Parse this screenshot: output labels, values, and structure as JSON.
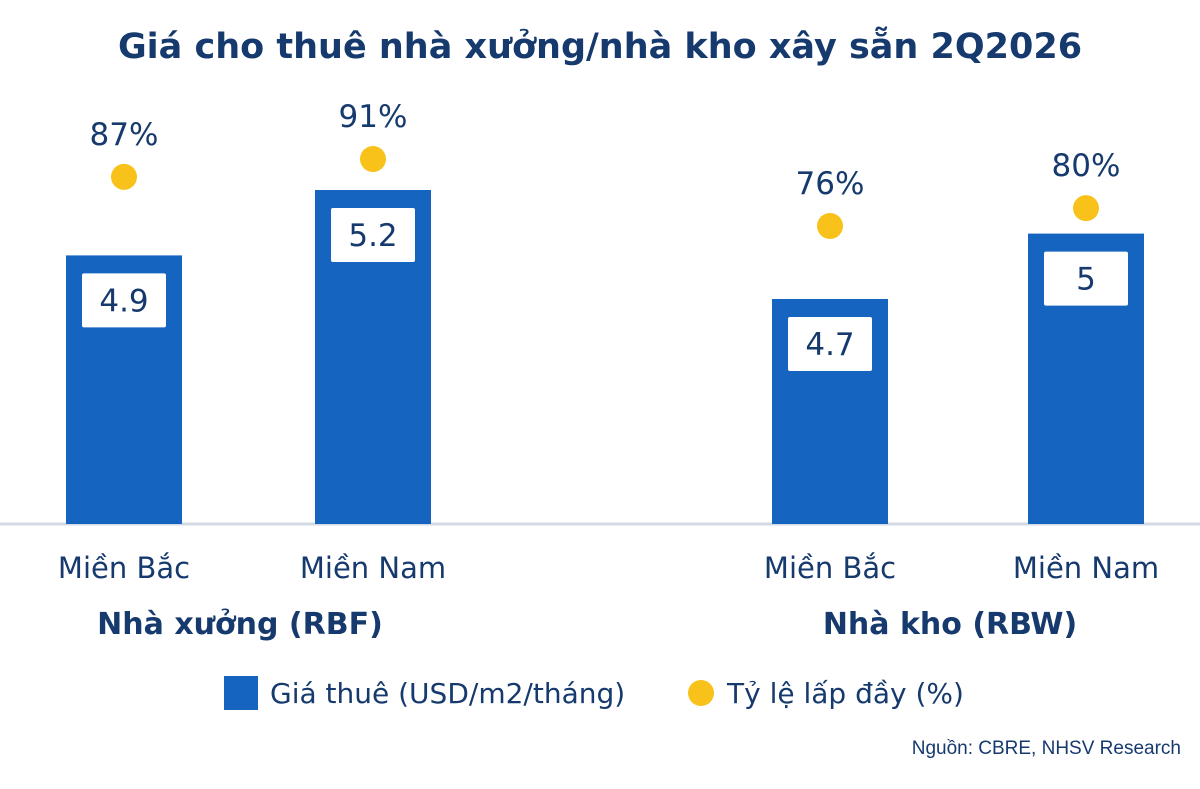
{
  "chart_data": {
    "type": "bar",
    "title": "Giá cho thuê nhà xưởng/nhà kho xây sẵn 2Q2026",
    "groups": [
      {
        "label": "Nhà xưởng (RBF)",
        "categories": [
          "Miền Bắc",
          "Miền Nam"
        ],
        "values": [
          4.9,
          5.2
        ],
        "value_labels": [
          "4.9",
          "5.2"
        ],
        "occupancy": [
          87,
          91
        ],
        "occupancy_labels": [
          "87%",
          "91%"
        ]
      },
      {
        "label": "Nhà kho (RBW)",
        "categories": [
          "Miền Bắc",
          "Miền Nam"
        ],
        "values": [
          4.7,
          5.0
        ],
        "value_labels": [
          "4.7",
          "5"
        ],
        "occupancy": [
          76,
          80
        ],
        "occupancy_labels": [
          "76%",
          "80%"
        ]
      }
    ],
    "series": [
      {
        "name": "Giá thuê (USD/m2/tháng)",
        "kind": "bar",
        "color": "#1565c0"
      },
      {
        "name": "Tỷ lệ lấp đầy (%)",
        "kind": "dot",
        "color": "#f8c21a"
      }
    ],
    "legend_position": "bottom",
    "grid": false,
    "source": "Nguồn: CBRE, NHSV Research"
  }
}
